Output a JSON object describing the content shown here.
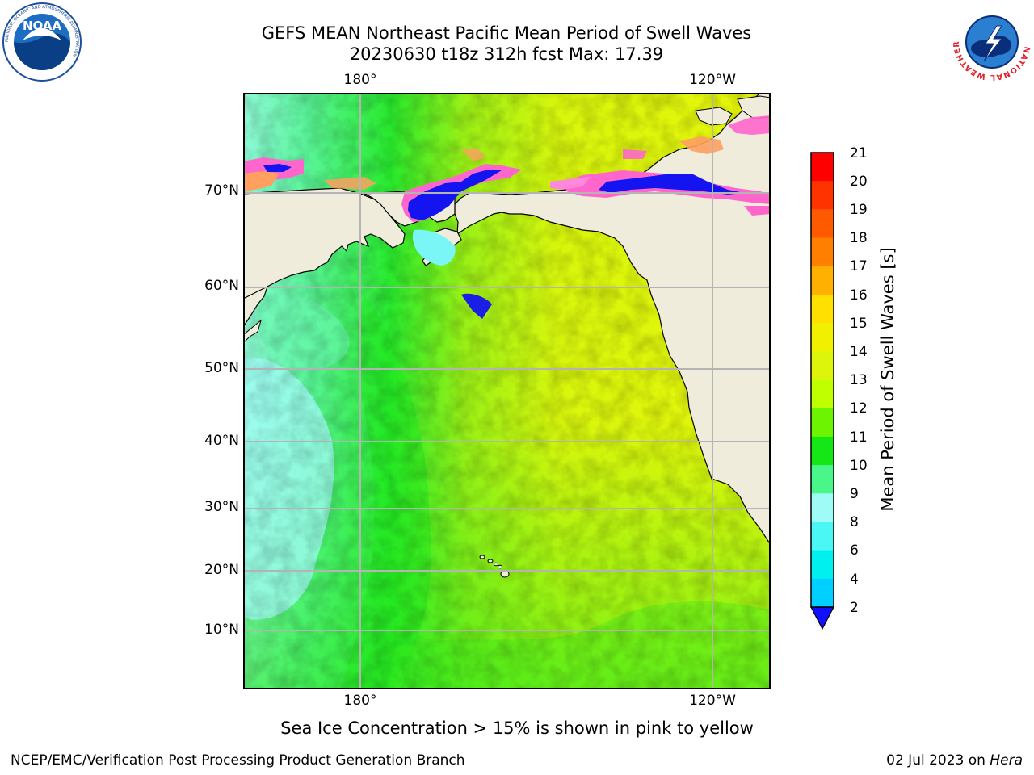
{
  "title": {
    "line1": "GEFS MEAN Northeast Pacific Mean Period of Swell Waves",
    "line2": "20230630 t18z 312h fcst   Max: 17.39"
  },
  "map": {
    "top_lon_labels": [
      "180°",
      "120°W"
    ],
    "bottom_lon_labels": [
      "180°",
      "120°W"
    ],
    "lat_labels": [
      "70°N",
      "60°N",
      "50°N",
      "40°N",
      "30°N",
      "20°N",
      "10°N"
    ],
    "colors": {
      "land": "#efecdc",
      "ocean_low": "#9ffbfb",
      "ocean_mid": "#4ff685",
      "ocean_green": "#2bea1f",
      "ocean_high": "#dcf60c",
      "ice_blue": "#1414f0",
      "ice_pink": "#ff66cc",
      "ice_orange": "#ffa060",
      "grid": "#b4b4b4"
    }
  },
  "colorbar": {
    "title": "Mean Period of Swell Waves [s]",
    "ticks": [
      "21",
      "20",
      "19",
      "18",
      "17",
      "16",
      "15",
      "14",
      "13",
      "12",
      "11",
      "10",
      "9",
      "8",
      "6",
      "4",
      "2"
    ],
    "colors": [
      "#ff0000",
      "#ff3300",
      "#ff5a00",
      "#ff8000",
      "#ffb000",
      "#ffe000",
      "#f0f000",
      "#dcf50a",
      "#c0ff00",
      "#6cf400",
      "#15e615",
      "#4af58a",
      "#9ffbf5",
      "#4af7f5",
      "#00f0f0",
      "#00d0ff",
      "#0080ff"
    ],
    "under_color": "#1010ff"
  },
  "caption": "Sea Ice Concentration > 15% is shown in pink to yellow",
  "footer": {
    "left": "NCEP/EMC/Verification Post Processing Product Generation Branch",
    "right_date": "02 Jul 2023 on ",
    "right_host": "Hera"
  },
  "logos": {
    "left_text": "NOAA",
    "left_ring": "NATIONAL OCEANIC AND ATMOSPHERIC ADMINISTRATION",
    "right_ring": "NATIONAL WEATHER SERVICE"
  }
}
